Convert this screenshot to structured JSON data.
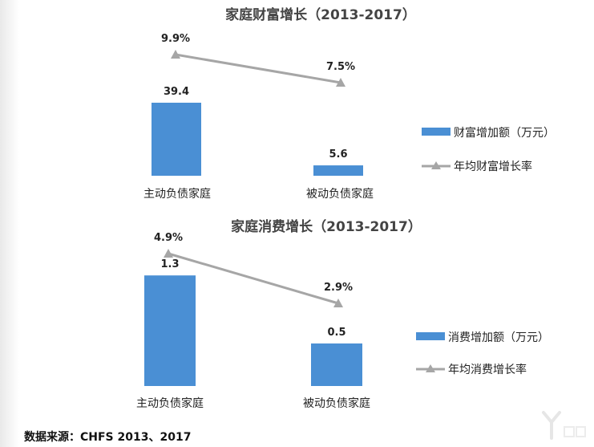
{
  "chart_data": [
    {
      "type": "bar",
      "title": "家庭财富增长（2013-2017）",
      "categories": [
        "主动负债家庭",
        "被动负债家庭"
      ],
      "series": [
        {
          "name": "财富增加额（万元）",
          "kind": "bar",
          "values": [
            39.4,
            5.6
          ],
          "labels": [
            "39.4",
            "5.6"
          ],
          "color": "#4a8fd4"
        },
        {
          "name": "年均财富增长率",
          "kind": "line",
          "values": [
            9.9,
            7.5
          ],
          "labels": [
            "9.9%",
            "7.5%"
          ],
          "color": "#a6a6a6"
        }
      ],
      "legend_position": "right",
      "grid": false
    },
    {
      "type": "bar",
      "title": "家庭消费增长（2013-2017）",
      "categories": [
        "主动负债家庭",
        "被动负债家庭"
      ],
      "series": [
        {
          "name": "消费增加额（万元）",
          "kind": "bar",
          "values": [
            1.3,
            0.5
          ],
          "labels": [
            "1.3",
            "0.5"
          ],
          "color": "#4a8fd4"
        },
        {
          "name": "年均消费增长率",
          "kind": "line",
          "values": [
            4.9,
            2.9
          ],
          "labels": [
            "4.9%",
            "2.9%"
          ],
          "color": "#a6a6a6"
        }
      ],
      "legend_position": "right",
      "grid": false
    }
  ],
  "source": "数据来源：CHFS 2013、2017"
}
